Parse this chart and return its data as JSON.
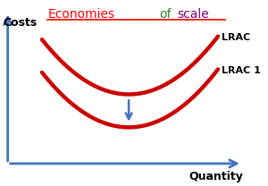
{
  "title_segments": [
    {
      "text": "Economies",
      "color": "#FF0000"
    },
    {
      "text": " of",
      "color": "#228B22"
    },
    {
      "text": " scale",
      "color": "#800080"
    }
  ],
  "underline_color": "#FF0000",
  "xlabel": "Quantity",
  "ylabel": "Costs",
  "curve_color": "#CC0000",
  "curve_linewidth": 3.2,
  "axis_color": "#4472C4",
  "background_color": "#FFFFFF",
  "lrac_label": "LRAC",
  "lrac1_label": "LRAC 1",
  "arrow_color": "#4472C4",
  "title_fontsize": 10,
  "label_fontsize": 8,
  "axis_label_fontsize": 9
}
